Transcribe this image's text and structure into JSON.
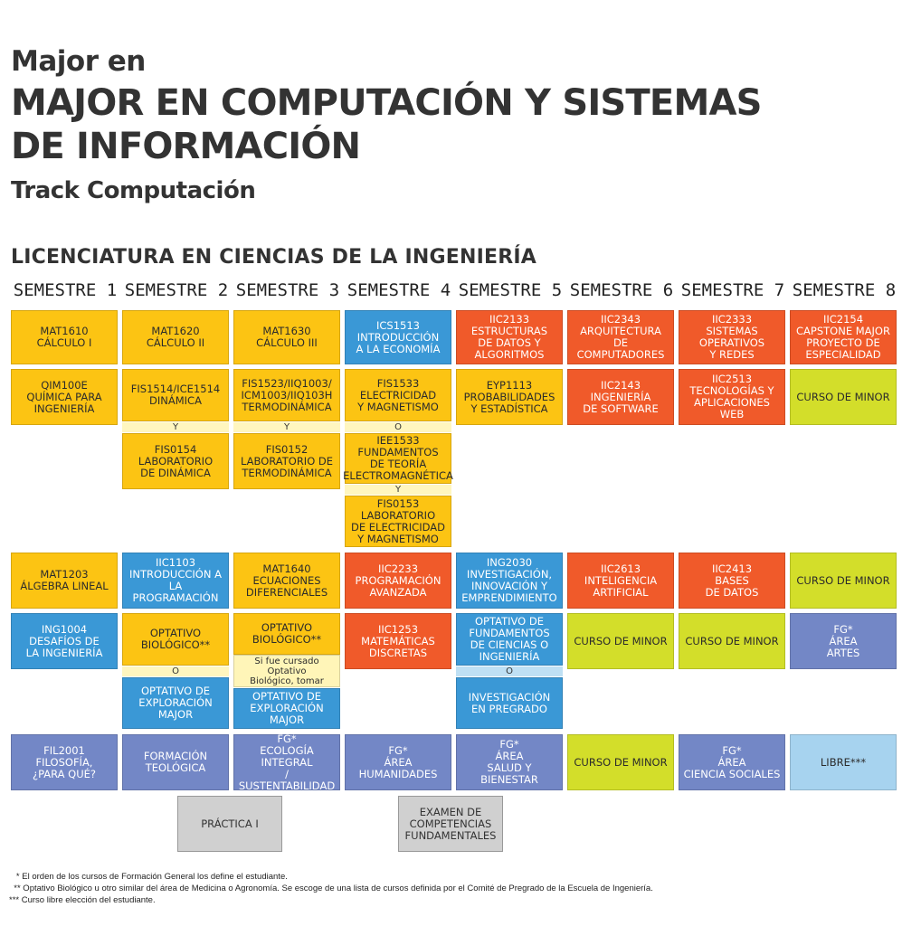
{
  "header": {
    "line1": "Major en",
    "line2": "MAJOR EN COMPUTACIÓN Y SISTEMAS DE INFORMACIÓN",
    "line3": "Track Computación"
  },
  "section_title": "LICENCIATURA EN CIENCIAS DE LA INGENIERÍA",
  "semesters": [
    "SEMESTRE 1",
    "SEMESTRE 2",
    "SEMESTRE 3",
    "SEMESTRE 4",
    "SEMESTRE 5",
    "SEMESTRE 6",
    "SEMESTRE 7",
    "SEMESTRE 8"
  ],
  "colors": {
    "yellow": "#fcc413",
    "blue": "#3a98d6",
    "red": "#f05a2a",
    "lime": "#d3de2a",
    "purple": "#7387c6",
    "lightblue": "#a7d3ef",
    "grey": "#d0d0d0"
  },
  "courses": {
    "s1": {
      "r1": "MAT1610\nCÁLCULO I",
      "r2": "QIM100E\nQUÍMICA PARA\nINGENIERÍA",
      "r3": "MAT1203\nÁLGEBRA LINEAL",
      "r4": "ING1004\nDESAFÍOS DE\nLA INGENIERÍA",
      "r5": "FIL2001\nFILOSOFÍA,\n¿PARA QUÉ?"
    },
    "s2": {
      "r1": "MAT1620\nCÁLCULO II",
      "r2a": "FIS1514/ICE1514\nDINÁMICA",
      "r2sep": "Y",
      "r2b": "FIS0154\nLABORATORIO\nDE DINÁMICA",
      "r3": "IIC1103\nINTRODUCCIÓN A\nLA PROGRAMACIÓN",
      "r4a": "OPTATIVO\nBIOLÓGICO**",
      "r4sep": "O",
      "r4b": "OPTATIVO DE\nEXPLORACIÓN\nMAJOR",
      "r5": "FORMACIÓN\nTEOLÓGICA"
    },
    "s3": {
      "r1": "MAT1630\nCÁLCULO III",
      "r2a": "FIS1523/IIQ1003/\nICM1003/IIQ103H\nTERMODINÁMICA",
      "r2sep": "Y",
      "r2b": "FIS0152\nLABORATORIO DE\nTERMODINÁMICA",
      "r3": "MAT1640\nECUACIONES\nDIFERENCIALES",
      "r4a": "OPTATIVO\nBIOLÓGICO**",
      "r4note": "Si fue cursado Optativo\nBiológico, tomar",
      "r4b": "OPTATIVO DE\nEXPLORACIÓN\nMAJOR",
      "r5": "FG*\nECOLOGÍA INTEGRAL\n/ SUSTENTABILIDAD"
    },
    "s4": {
      "r1": "ICS1513\nINTRODUCCIÓN\nA LA ECONOMÍA",
      "r2a": "FIS1533\nELECTRICIDAD\nY MAGNETISMO",
      "r2sep1": "O",
      "r2b": "IEE1533\nFUNDAMENTOS\nDE TEORÍA\nELECTROMAGNÉTICA",
      "r2sep2": "Y",
      "r2c": "FIS0153\nLABORATORIO\nDE ELECTRICIDAD\nY MAGNETISMO",
      "r3": "IIC2233\nPROGRAMACIÓN\nAVANZADA",
      "r4": "IIC1253\nMATEMÁTICAS\nDISCRETAS",
      "r5": "FG*\nÁREA\nHUMANIDADES"
    },
    "s5": {
      "r1": "IIC2133\nESTRUCTURAS\nDE DATOS Y\nALGORITMOS",
      "r2": "EYP1113\nPROBABILIDADES\nY ESTADÍSTICA",
      "r3": "ING2030\nINVESTIGACIÓN,\nINNOVACIÓN Y\nEMPRENDIMIENTO",
      "r4a": "OPTATIVO DE\nFUNDAMENTOS\nDE CIENCIAS O\nINGENIERÍA",
      "r4sep": "O",
      "r4b": "INVESTIGACIÓN\nEN PREGRADO",
      "r5": "FG*\nÁREA\nSALUD Y BIENESTAR"
    },
    "s6": {
      "r1": "IIC2343\nARQUITECTURA\nDE COMPUTADORES",
      "r2": "IIC2143\nINGENIERÍA\nDE SOFTWARE",
      "r3": "IIC2613\nINTELIGENCIA\nARTIFICIAL",
      "r4": "CURSO DE MINOR",
      "r5": "CURSO DE MINOR"
    },
    "s7": {
      "r1": "IIC2333\nSISTEMAS\nOPERATIVOS\nY REDES",
      "r2": "IIC2513\nTECNOLOGÍAS Y\nAPLICACIONES WEB",
      "r3": "IIC2413\nBASES\nDE DATOS",
      "r4": "CURSO DE MINOR",
      "r5": "FG*\nÁREA\nCIENCIA SOCIALES"
    },
    "s8": {
      "r1": "IIC2154\nCAPSTONE MAJOR\nPROYECTO DE\nESPECIALIDAD",
      "r2": "CURSO DE MINOR",
      "r3": "CURSO DE MINOR",
      "r4": "FG*\nÁREA\nARTES",
      "r5": "LIBRE***"
    }
  },
  "extra": {
    "practica": "PRÁCTICA I",
    "examen": "EXAMEN DE\nCOMPETENCIAS\nFUNDAMENTALES"
  },
  "notes": [
    "   * El orden de los cursos de Formación General los define el estudiante.",
    "  ** Optativo Biológico u otro similar del área de Medicina o Agronomía. Se escoge de una lista de cursos definida por el Comité de Pregrado de la Escuela de Ingeniería.",
    "*** Curso libre elección del estudiante."
  ]
}
